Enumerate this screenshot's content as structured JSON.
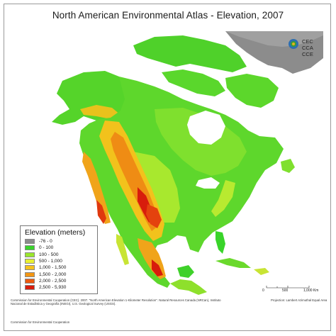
{
  "title": "North American Environmental Atlas - Elevation, 2007",
  "logo": {
    "lines": [
      "CEC",
      "CCA",
      "CCE"
    ]
  },
  "legend": {
    "title": "Elevation (meters)",
    "items": [
      {
        "label": "-76 - 0",
        "color": "#8c8c8c"
      },
      {
        "label": "0 - 100",
        "color": "#39d42a"
      },
      {
        "label": "100 - 500",
        "color": "#9be62c"
      },
      {
        "label": "500 - 1,000",
        "color": "#e8f032"
      },
      {
        "label": "1,000 - 1,500",
        "color": "#f5c21c"
      },
      {
        "label": "1,500 - 2,000",
        "color": "#f29614"
      },
      {
        "label": "2,000 - 2,500",
        "color": "#ec5a10"
      },
      {
        "label": "2,500 - 5,930",
        "color": "#d81c0c"
      }
    ]
  },
  "scale": {
    "ticks": [
      "0",
      "500",
      "1,000 Km"
    ]
  },
  "footer": {
    "citation": "Commission for Environmental Cooperation (CEC). 2007. \"North American Elevation 1-Kilometer Resolution\". Natural Resources Canada (NRCan), Instituto Nacional de Estadística y Geografía (INEGI), U.S. Geological Survey (USGS).",
    "projection": "Projection: Lambert Azimuthal Equal Area",
    "copyright": "Commission for Environmental Cooperation"
  }
}
